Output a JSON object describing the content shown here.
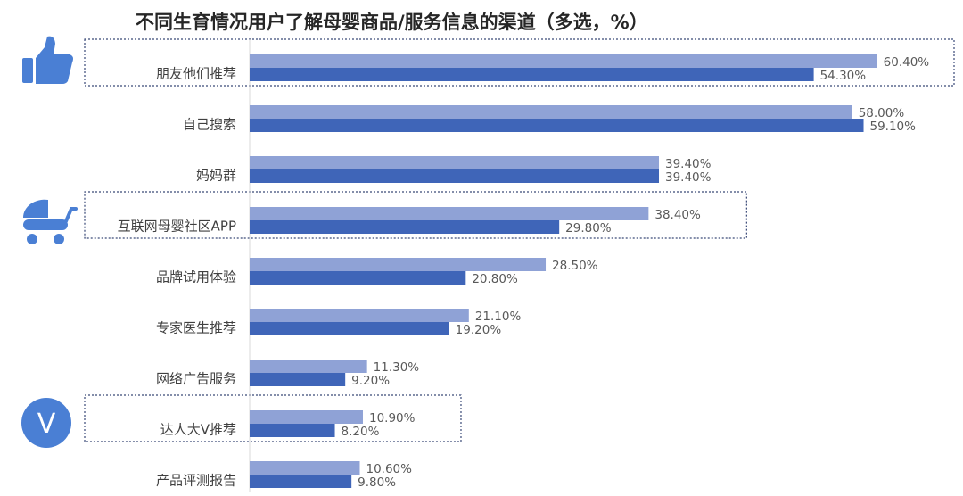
{
  "chart_data": {
    "type": "bar",
    "orientation": "horizontal",
    "title": "不同生育情况用户了解母婴商品/服务信息的渠道（多选，%）",
    "categories": [
      "朋友他们推荐",
      "自己搜索",
      "妈妈群",
      "互联网母婴社区APP",
      "品牌试用体验",
      "专家医生推荐",
      "网络广告服务",
      "达人大V推荐",
      "产品评测报告"
    ],
    "series": [
      {
        "values": [
          60.4,
          58.0,
          39.4,
          38.4,
          28.5,
          21.1,
          11.3,
          10.9,
          10.6
        ],
        "labels": [
          "60.40%",
          "58.00%",
          "39.40%",
          "38.40%",
          "28.50%",
          "21.10%",
          "11.30%",
          "10.90%",
          "10.60%"
        ]
      },
      {
        "values": [
          54.3,
          59.1,
          39.4,
          29.8,
          20.8,
          19.2,
          9.2,
          8.2,
          9.8
        ],
        "labels": [
          "54.30%",
          "59.10%",
          "39.40%",
          "29.80%",
          "20.80%",
          "19.20%",
          "9.20%",
          "8.20%",
          "9.80%"
        ]
      }
    ],
    "xlim": [
      0,
      70
    ],
    "grid": false,
    "legend": "none",
    "highlighted_categories": [
      "朋友他们推荐",
      "互联网母婴社区APP",
      "达人大V推荐"
    ]
  },
  "colors": {
    "series_light": "#8fa2d6",
    "series_dark": "#3f65b8",
    "icon": "#4a7fd4",
    "highlight_border": "#3b4a78"
  },
  "icons": {
    "0": "thumbs-up-icon",
    "3": "baby-stroller-icon",
    "7": "v-badge-icon"
  },
  "badge_letter": "V"
}
